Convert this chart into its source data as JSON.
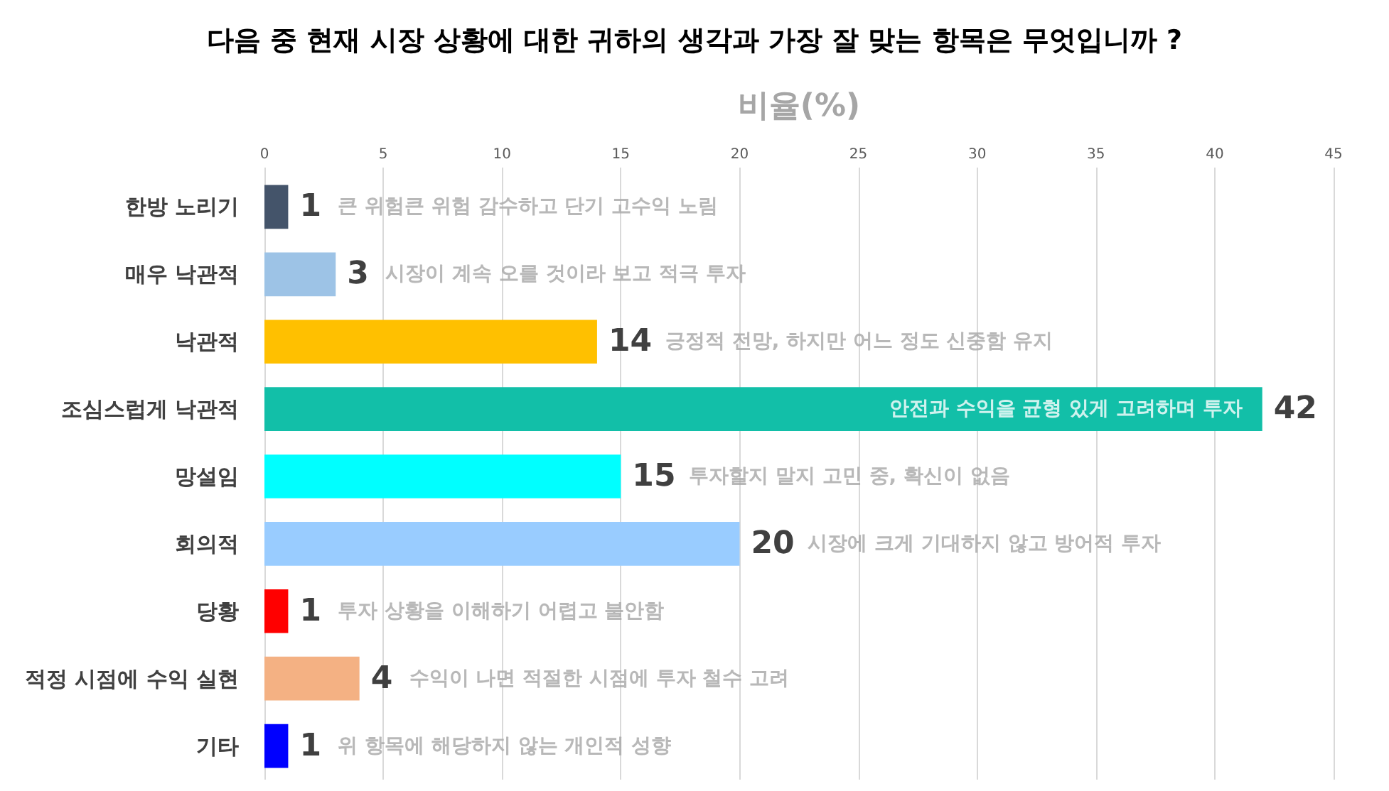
{
  "chart_data": {
    "type": "bar",
    "orientation": "horizontal",
    "title": "다음 중 현재 시장 상황에 대한 귀하의 생각과 가장 잘 맞는 항목은 무엇입니까 ?",
    "xlabel": "비율(%)",
    "categories": [
      "한방 노리기",
      "매우 낙관적",
      "낙관적",
      "조심스럽게 낙관적",
      "망설임",
      "회의적",
      "당황",
      "적정 시점에 수익 실현",
      "기타"
    ],
    "values": [
      1,
      3,
      14,
      42,
      15,
      20,
      1,
      4,
      1
    ],
    "colors": [
      "#44546a",
      "#9dc3e6",
      "#ffc000",
      "#12bfa8",
      "#00ffff",
      "#99ccff",
      "#ff0000",
      "#f4b183",
      "#0000ff"
    ],
    "xlim": [
      0,
      45
    ],
    "xticks": [
      0,
      5,
      10,
      15,
      20,
      25,
      30,
      35,
      40,
      45
    ],
    "grid": "x",
    "data_labels": true,
    "annotations": [
      "큰 위험큰 위험 감수하고 단기 고수익 노림",
      "시장이 계속 오를 것이라 보고 적극 투자",
      "긍정적 전망, 하지만 어느 정도 신중함 유지",
      "안전과 수익을 균형 있게 고려하며 투자",
      "투자할지 말지 고민 중, 확신이 없음",
      "시장에 크게 기대하지 않고 방어적 투자",
      "투자 상황을 이해하기 어렵고 불안함",
      "수익이 나면 적절한 시점에 투자 철수 고려",
      "위 항목에 해당하지 않는 개인적 성향"
    ]
  }
}
